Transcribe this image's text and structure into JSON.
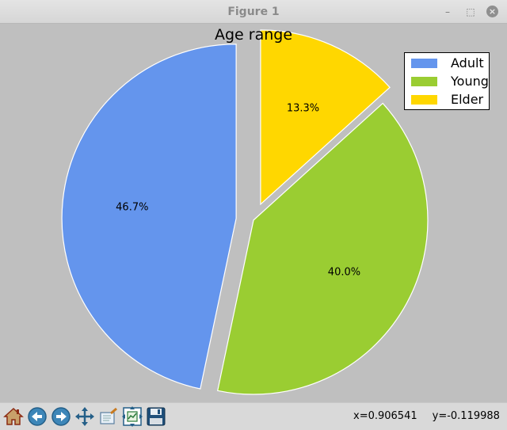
{
  "window": {
    "title": "Figure 1",
    "minimize_symbol": "–",
    "maximize_symbol": "⬚",
    "close_symbol": "×"
  },
  "chart_data": {
    "type": "pie",
    "title": "Age range",
    "categories": [
      "Adult",
      "Young",
      "Elder"
    ],
    "values": [
      46.7,
      40.0,
      13.3
    ],
    "labels": [
      "46.7%",
      "40.0%",
      "13.3%"
    ],
    "colors": [
      "#6495ED",
      "#9ACD32",
      "#FFD700"
    ],
    "explode": [
      0.1,
      0.0,
      0.1
    ],
    "start_angle_deg": 90,
    "direction": "counterclockwise",
    "edge_color": "#ffffff",
    "legend_position": "upper-right"
  },
  "toolbar": {
    "buttons": [
      {
        "name": "home-button",
        "icon": "home-icon"
      },
      {
        "name": "back-button",
        "icon": "left-arrow-icon"
      },
      {
        "name": "forward-button",
        "icon": "right-arrow-icon"
      },
      {
        "name": "pan-button",
        "icon": "move-arrows-icon"
      },
      {
        "name": "zoom-button",
        "icon": "zoom-rect-icon"
      },
      {
        "name": "subplots-button",
        "icon": "subplots-icon"
      },
      {
        "name": "save-button",
        "icon": "floppy-disk-icon"
      }
    ],
    "x_readout": "x=0.906541",
    "y_readout": "y=-0.119988"
  }
}
